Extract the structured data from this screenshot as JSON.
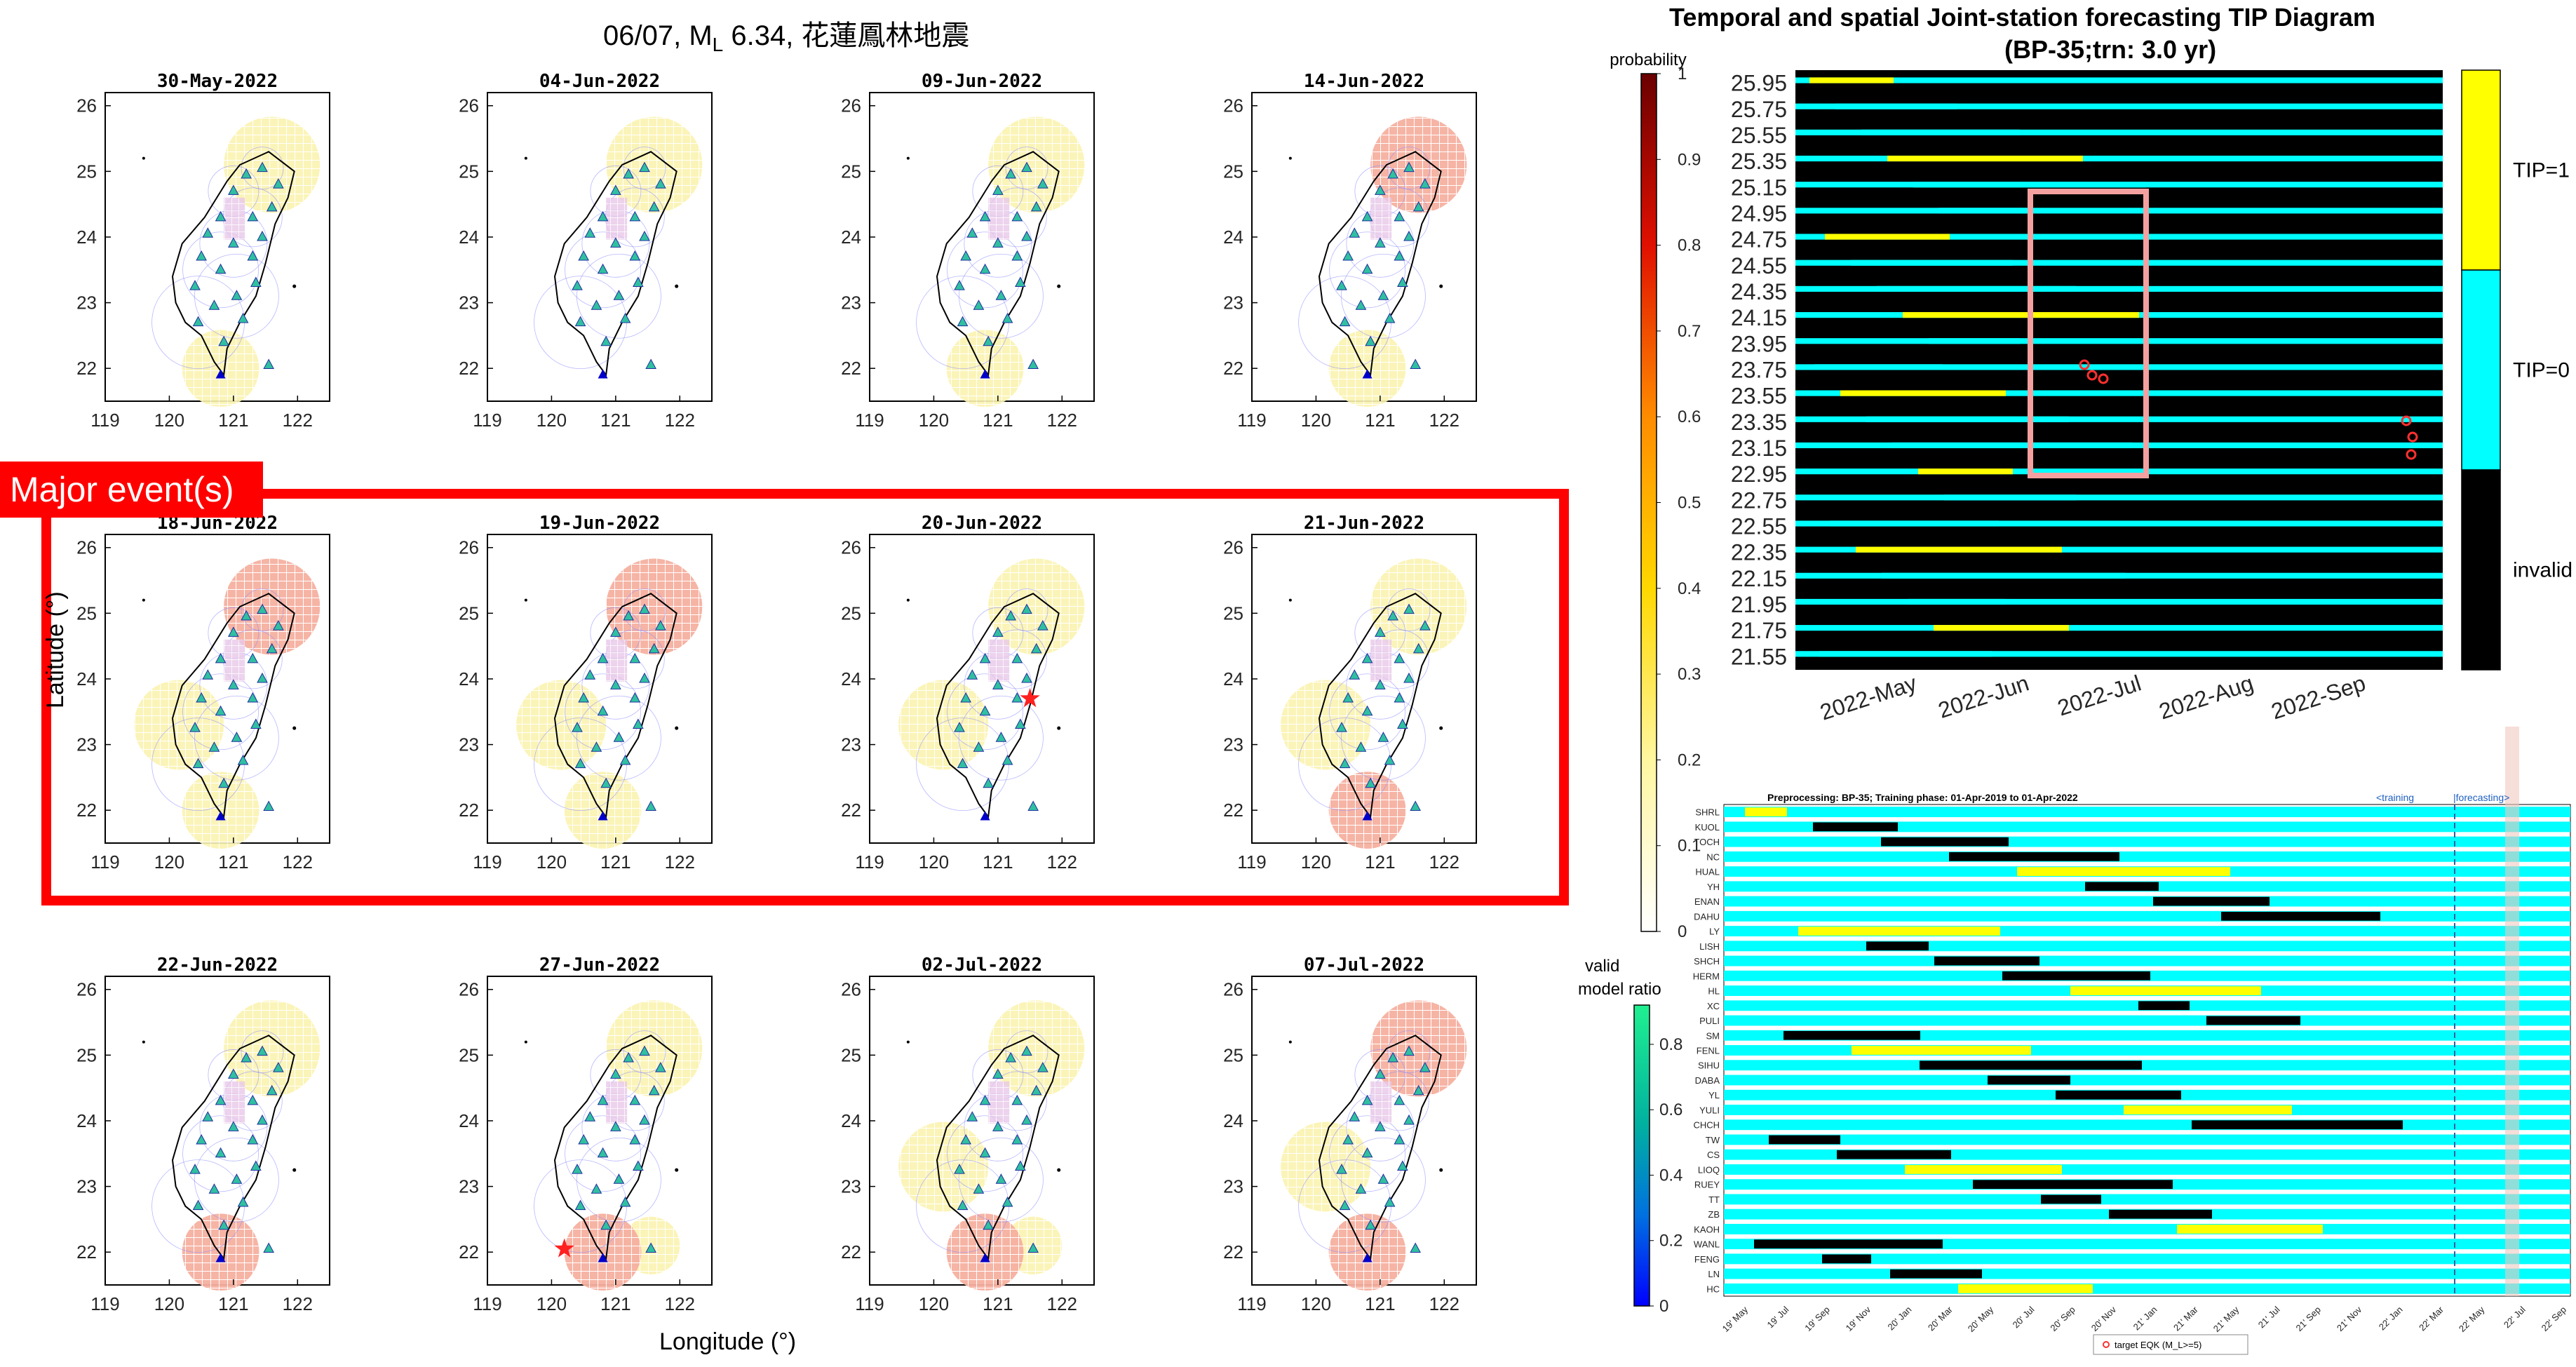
{
  "figure": {
    "main_title": {
      "prefix": "06/07, M",
      "sub": "L",
      "suffix": " 6.34, 花蓮鳳林地震"
    },
    "major_event_label": "Major event(s)",
    "xlabel": "Longitude (°)",
    "ylabel": "Latitude (°)"
  },
  "colors": {
    "highlight_red": "#ff0000",
    "tip1": "#ffff00",
    "tip0": "#00ffff",
    "invalid": "#000000",
    "tip_box": "#f4a0a0",
    "station_triangle": "#30c0a0"
  },
  "chart_data": [
    {
      "type": "map-panels",
      "xlim": [
        119,
        122.5
      ],
      "ylim": [
        21.5,
        26.2
      ],
      "xticks": [
        "119",
        "120",
        "121",
        "122"
      ],
      "yticks": [
        "22",
        "23",
        "24",
        "25",
        "26"
      ],
      "panels": [
        {
          "date": "30-May-2022",
          "row": 0,
          "col": 0,
          "quake": null
        },
        {
          "date": "04-Jun-2022",
          "row": 0,
          "col": 1,
          "quake": null
        },
        {
          "date": "09-Jun-2022",
          "row": 0,
          "col": 2,
          "quake": null
        },
        {
          "date": "14-Jun-2022",
          "row": 0,
          "col": 3,
          "quake": null
        },
        {
          "date": "18-Jun-2022",
          "row": 1,
          "col": 0,
          "quake": null
        },
        {
          "date": "19-Jun-2022",
          "row": 1,
          "col": 1,
          "quake": null
        },
        {
          "date": "20-Jun-2022",
          "row": 1,
          "col": 2,
          "quake": [
            121.5,
            23.7
          ]
        },
        {
          "date": "21-Jun-2022",
          "row": 1,
          "col": 3,
          "quake": null
        },
        {
          "date": "22-Jun-2022",
          "row": 2,
          "col": 0,
          "quake": null
        },
        {
          "date": "27-Jun-2022",
          "row": 2,
          "col": 1,
          "quake": [
            120.2,
            22.05
          ]
        },
        {
          "date": "02-Jul-2022",
          "row": 2,
          "col": 2,
          "quake": null
        },
        {
          "date": "07-Jul-2022",
          "row": 2,
          "col": 3,
          "quake": null
        }
      ]
    },
    {
      "type": "colorbar",
      "label": "probability",
      "ticks": [
        "0",
        "0.1",
        "0.2",
        "0.3",
        "0.4",
        "0.5",
        "0.6",
        "0.7",
        "0.8",
        "0.9",
        "1"
      ]
    },
    {
      "type": "colorbar",
      "label_line1": "valid",
      "label_line2": "model ratio",
      "ticks": [
        "0",
        "0.2",
        "0.4",
        "0.6",
        "0.8"
      ]
    },
    {
      "type": "heatmap",
      "title": "Temporal and spatial Joint-station forecasting TIP Diagram",
      "subtitle": "(BP-35;trn: 3.0 yr)",
      "y": [
        "25.95",
        "25.75",
        "25.55",
        "25.35",
        "25.15",
        "24.95",
        "24.75",
        "24.55",
        "24.35",
        "24.15",
        "23.95",
        "23.75",
        "23.55",
        "23.35",
        "23.15",
        "22.95",
        "22.75",
        "22.55",
        "22.35",
        "22.15",
        "21.95",
        "21.75",
        "21.55"
      ],
      "x": [
        "2022-May",
        "2022-Jun",
        "2022-Jul",
        "2022-Aug",
        "2022-Sep"
      ],
      "legend": [
        "TIP=1",
        "TIP=0",
        "invalid"
      ]
    },
    {
      "type": "heatmap",
      "title": "Preprocessing: BP-35; Training phase: 01-Apr-2019 to 01-Apr-2022",
      "phase_labels": [
        "<training",
        "|forecasting>"
      ],
      "stations": [
        "SHRL",
        "KUOL",
        "TOCH",
        "NC",
        "HUAL",
        "YH",
        "ENAN",
        "DAHU",
        "LY",
        "LISH",
        "SHCH",
        "HERM",
        "HL",
        "XC",
        "PULI",
        "SM",
        "FENL",
        "SIHU",
        "DABA",
        "YL",
        "YULI",
        "CHCH",
        "TW",
        "CS",
        "LIOQ",
        "RUEY",
        "TT",
        "ZB",
        "KAOH",
        "WANL",
        "FENG",
        "LN",
        "HC"
      ],
      "x": [
        "19' May",
        "19' Jul",
        "19' Sep",
        "19' Nov",
        "20' Jan",
        "20' Mar",
        "20' May",
        "20' Jul",
        "20' Sep",
        "20' Nov",
        "21' Jan",
        "21' Mar",
        "21' May",
        "21' Jul",
        "21' Sep",
        "21' Nov",
        "22' Jan",
        "22' Mar",
        "22' May",
        "22' Jul",
        "22' Sep"
      ],
      "legend_label": "target EQK (M_L>=5)"
    }
  ]
}
